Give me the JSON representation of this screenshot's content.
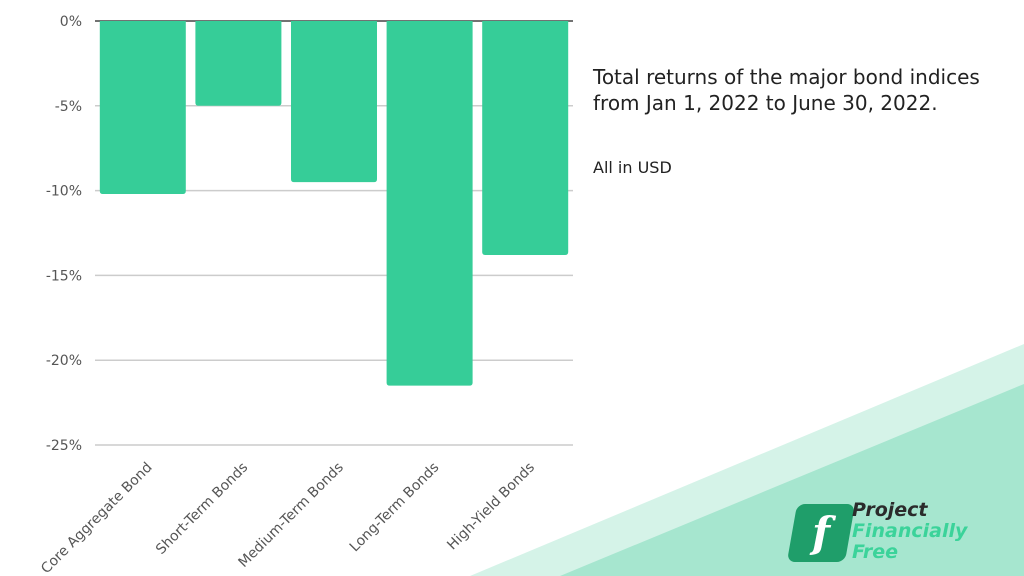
{
  "chart_data": {
    "type": "bar",
    "categories": [
      "Core Aggregate Bond",
      "Short-Term Bonds",
      "Medium-Term Bonds",
      "Long-Term Bonds",
      "High-Yield Bonds"
    ],
    "values": [
      -10.2,
      -5.0,
      -9.5,
      -21.5,
      -13.8
    ],
    "ylim": [
      -25,
      0
    ],
    "yticks": [
      0,
      -5,
      -10,
      -15,
      -20,
      -25
    ],
    "ytick_labels": [
      "0%",
      "-5%",
      "-10%",
      "-15%",
      "-20%",
      "-25%"
    ],
    "grid": true,
    "bar_color": "#36cd98"
  },
  "caption": {
    "title_line1": "Total returns of the major bond indices",
    "title_line2": "from Jan 1, 2022 to June 30, 2022.",
    "note": "All in USD"
  },
  "logo": {
    "mark": "f",
    "word1": "Project",
    "word2": "Financially",
    "word3": "Free"
  },
  "colors": {
    "accent": "#36cd98",
    "background_band_light": "#d5f3e8",
    "background_band": "#a6e6cf",
    "grid": "#cccccc",
    "axis_zero": "#444444"
  }
}
